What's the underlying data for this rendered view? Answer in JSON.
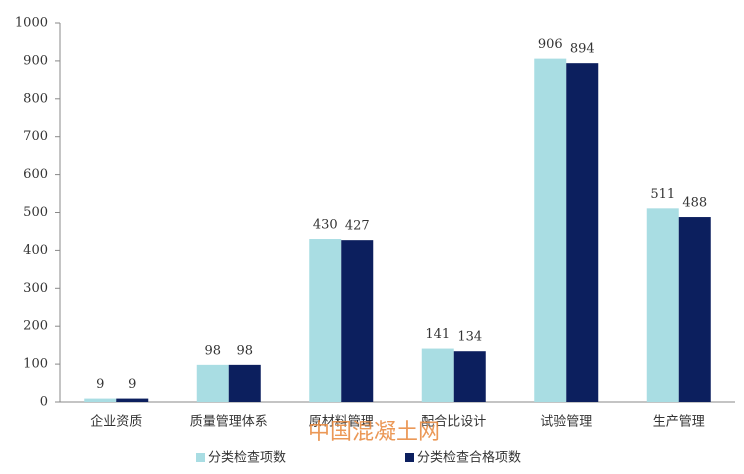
{
  "chart_data": {
    "type": "bar",
    "categories": [
      "企业资质",
      "质量管理体系",
      "原材料管理",
      "配合比设计",
      "试验管理",
      "生产管理"
    ],
    "series": [
      {
        "name": "分类检查项数",
        "color": "#a9dde3",
        "values": [
          9,
          98,
          430,
          141,
          906,
          511
        ]
      },
      {
        "name": "分类检查合格项数",
        "color": "#0c1f5e",
        "values": [
          9,
          98,
          427,
          134,
          894,
          488
        ]
      }
    ],
    "ylim": [
      0,
      1000
    ],
    "yticks": [
      0,
      100,
      200,
      300,
      400,
      500,
      600,
      700,
      800,
      900,
      1000
    ],
    "grid": false,
    "legend": "bottom",
    "watermark": "中国混凝土网"
  }
}
